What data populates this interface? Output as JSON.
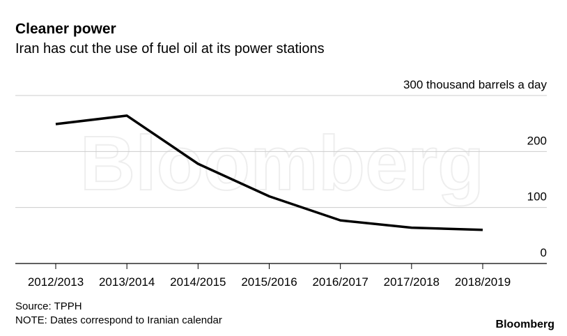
{
  "chart_data": {
    "type": "line",
    "title": "Cleaner power",
    "subtitle": "Iran has cut the use of fuel oil at its power stations",
    "categories": [
      "2012/2013",
      "2013/2014",
      "2014/2015",
      "2015/2016",
      "2016/2017",
      "2017/2018",
      "2018/2019"
    ],
    "series": [
      {
        "name": "Fuel oil use",
        "color": "#000000",
        "values": [
          249,
          264,
          178,
          120,
          77,
          64,
          60
        ]
      }
    ],
    "ylim": [
      0,
      300
    ],
    "yticks": [
      0,
      100,
      200,
      {
        "value": 300,
        "label": "300 thousand barrels a day"
      }
    ],
    "grid": true,
    "source": "Source: TPPH",
    "note": "NOTE: Dates correspond to Iranian calendar",
    "logo": "Bloomberg",
    "watermark": "Bloomberg"
  }
}
